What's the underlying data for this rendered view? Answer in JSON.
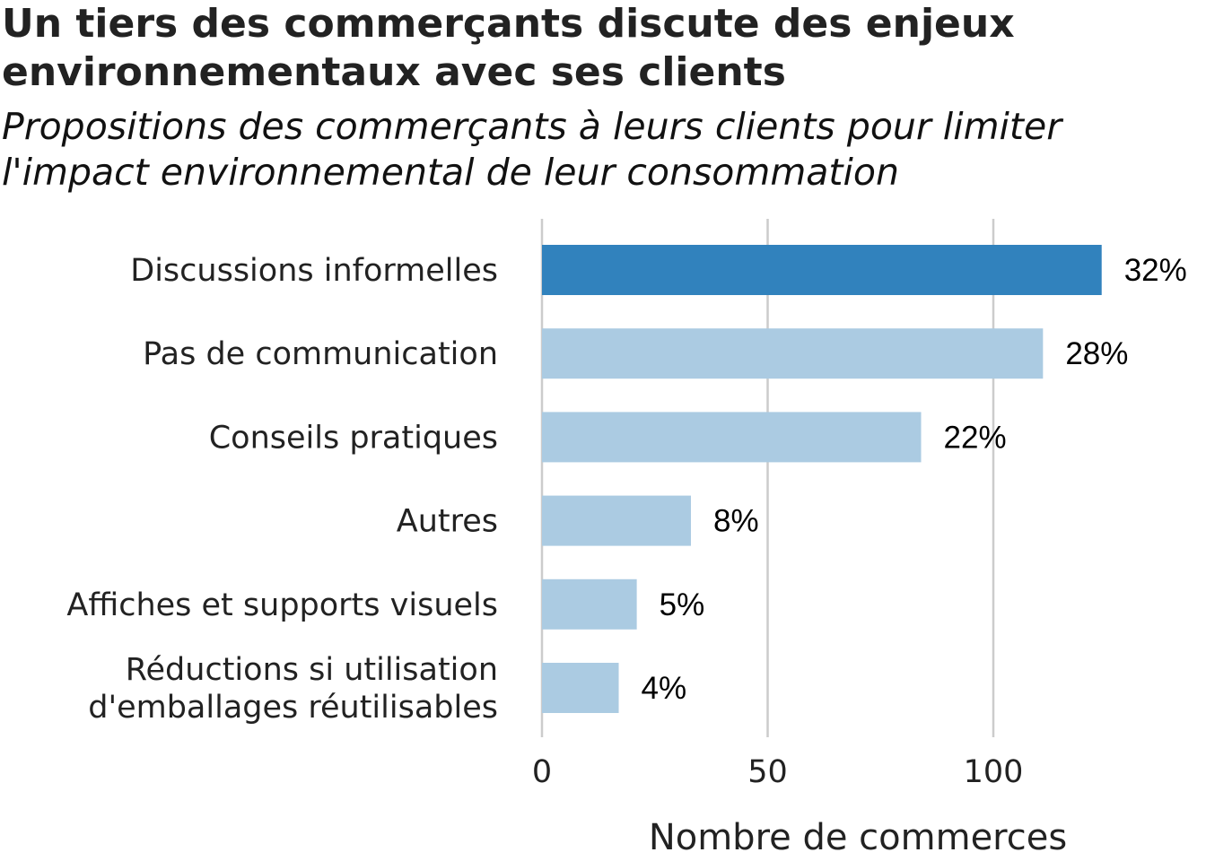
{
  "title": "Un tiers des commerçants discute des enjeux environnementaux avec ses clients",
  "subtitle": "Propositions des commerçants à leurs clients pour limiter l'impact environnemental de leur consommation",
  "colors": {
    "highlight": "#3182bd",
    "bar": "#abcbe2",
    "grid": "#cccccc"
  },
  "chart_data": {
    "type": "bar",
    "orientation": "horizontal",
    "categories": [
      "Discussions informelles",
      "Pas de communication",
      "Conseils pratiques",
      "Autres",
      "Affiches et supports visuels",
      "Réductions si utilisation d'emballages réutilisables"
    ],
    "values": [
      124,
      111,
      84,
      33,
      21,
      17
    ],
    "labels": [
      "32%",
      "28%",
      "22%",
      "8%",
      "5%",
      "4%"
    ],
    "highlight_index": 0,
    "xlabel": "Nombre de commerces",
    "xticks": [
      0,
      50,
      100
    ],
    "xlim": [
      0,
      125
    ],
    "grid": "vertical"
  }
}
